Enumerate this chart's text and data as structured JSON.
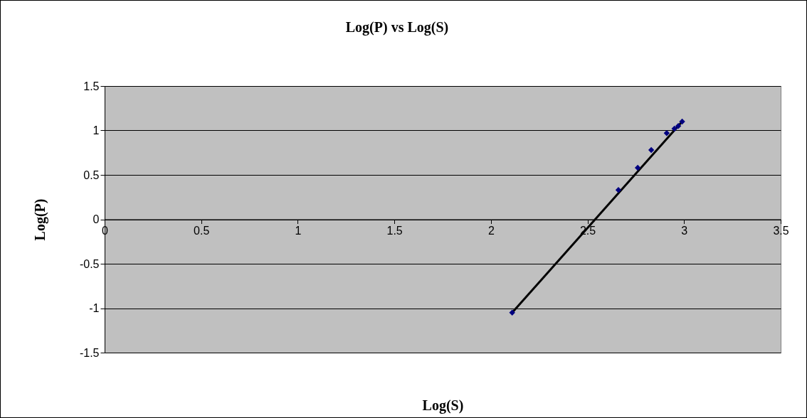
{
  "chart_data": {
    "type": "scatter",
    "title": "Log(P) vs Log(S)",
    "xlabel": "Log(S)",
    "ylabel": "Log(P)",
    "x": [
      2.11,
      2.66,
      2.76,
      2.83,
      2.91,
      2.95,
      2.97,
      2.99
    ],
    "series": [
      {
        "type": "line",
        "color": "#000000",
        "marker": "none",
        "line_style": "solid",
        "x": [
          2.11,
          2.99
        ],
        "values": [
          -1.05,
          1.1
        ]
      },
      {
        "type": "scatter",
        "color": "#000080",
        "marker": "diamond",
        "values": [
          -1.05,
          0.33,
          0.58,
          0.78,
          0.97,
          1.02,
          1.05,
          1.1
        ]
      }
    ],
    "xlim": [
      0,
      3.5
    ],
    "xticks": [
      0,
      0.5,
      1,
      1.5,
      2,
      2.5,
      3,
      3.5
    ],
    "ylim": [
      -1.5,
      1.5
    ],
    "yticks": [
      -1.5,
      -1,
      -0.5,
      0,
      0.5,
      1,
      1.5
    ],
    "grid": "y"
  }
}
